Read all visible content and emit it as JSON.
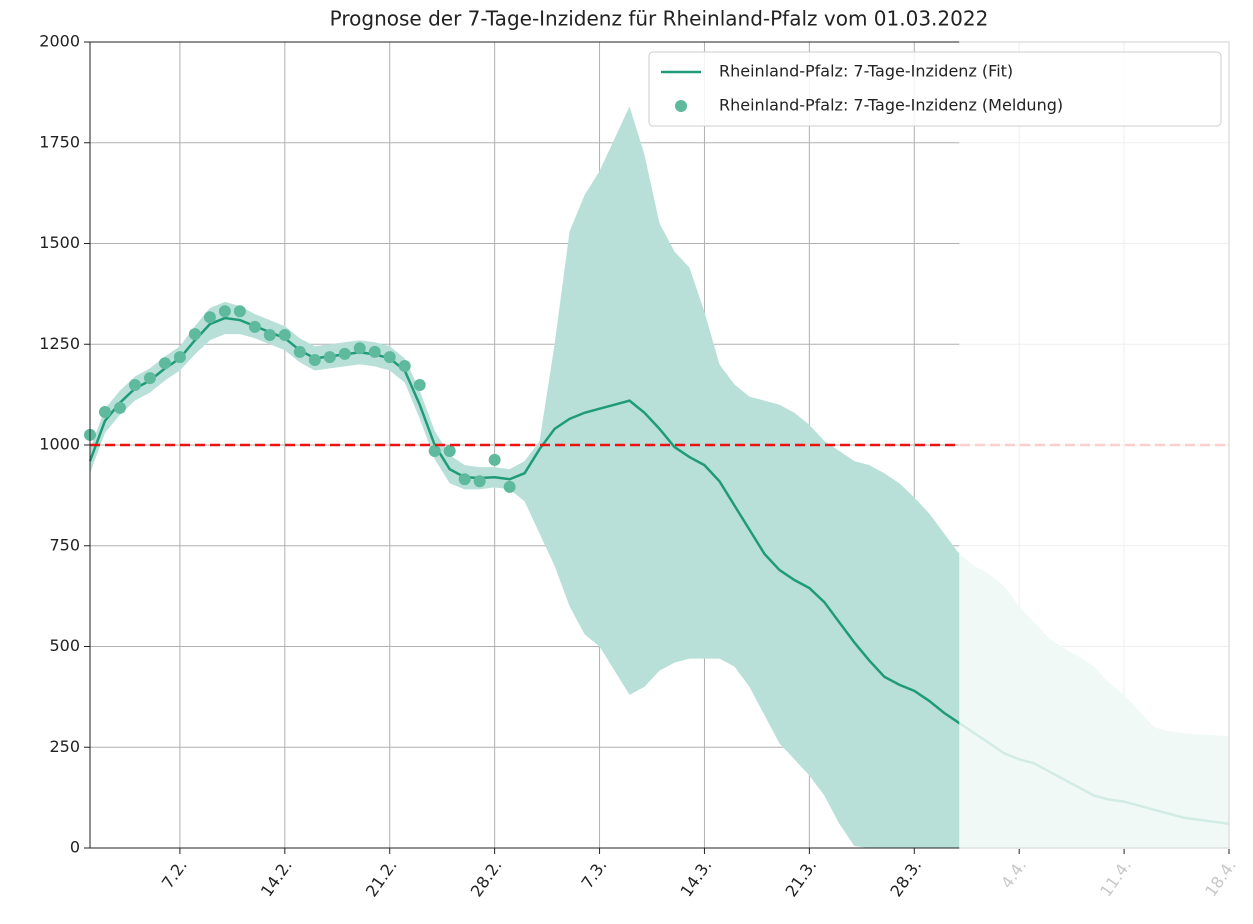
{
  "chart_data": {
    "type": "line",
    "title": "Prognose der 7-Tage-Inzidenz für Rheinland-Pfalz vom 01.03.2022",
    "xlim": [
      32,
      108
    ],
    "xticks": [
      {
        "value": 38,
        "label": "7.2."
      },
      {
        "value": 45,
        "label": "14.2."
      },
      {
        "value": 52,
        "label": "21.2."
      },
      {
        "value": 59,
        "label": "28.2."
      },
      {
        "value": 66,
        "label": "7.3."
      },
      {
        "value": 73,
        "label": "14.3."
      },
      {
        "value": 80,
        "label": "21.3."
      },
      {
        "value": 87,
        "label": "28.3."
      },
      {
        "value": 94,
        "label": "4.4."
      },
      {
        "value": 101,
        "label": "11.4."
      },
      {
        "value": 108,
        "label": "18.4."
      }
    ],
    "ylim": [
      0,
      2000
    ],
    "yticks": [
      0,
      250,
      500,
      750,
      1000,
      1250,
      1500,
      1750,
      2000
    ],
    "grid": true,
    "legend": "upper right",
    "threshold": {
      "value": 1000,
      "color": "#ee1111"
    },
    "faded_from": 90,
    "series": [
      {
        "name": "Rheinland-Pfalz: 7-Tage-Inzidenz (Fit)",
        "type": "line",
        "color": "#1f9b78",
        "band_color": "#b8e0d8",
        "x": [
          32,
          33,
          34,
          35,
          36,
          37,
          38,
          39,
          40,
          41,
          42,
          43,
          44,
          45,
          46,
          47,
          48,
          49,
          50,
          51,
          52,
          53,
          54,
          55,
          56,
          57,
          58,
          59,
          60,
          61,
          62,
          63,
          64,
          65,
          66,
          67,
          68,
          69,
          70,
          71,
          72,
          73,
          74,
          75,
          76,
          77,
          78,
          79,
          80,
          81,
          82,
          83,
          84,
          85,
          86,
          87,
          88,
          89,
          90,
          91,
          92,
          93,
          94,
          95,
          96,
          97,
          98,
          99,
          100,
          101,
          102,
          103,
          104,
          105,
          106,
          107,
          108
        ],
        "values": [
          960,
          1060,
          1105,
          1140,
          1160,
          1190,
          1215,
          1260,
          1300,
          1315,
          1310,
          1295,
          1280,
          1265,
          1235,
          1215,
          1220,
          1225,
          1230,
          1225,
          1215,
          1185,
          1100,
          1000,
          940,
          920,
          918,
          920,
          915,
          930,
          990,
          1040,
          1065,
          1080,
          1090,
          1100,
          1110,
          1080,
          1040,
          995,
          970,
          950,
          910,
          850,
          790,
          730,
          690,
          665,
          645,
          610,
          560,
          510,
          465,
          425,
          405,
          390,
          365,
          335,
          310,
          285,
          260,
          235,
          220,
          210,
          190,
          170,
          150,
          130,
          120,
          115,
          105,
          95,
          85,
          75,
          70,
          65,
          60
        ],
        "upper": [
          990,
          1090,
          1135,
          1170,
          1190,
          1220,
          1245,
          1295,
          1340,
          1355,
          1345,
          1325,
          1310,
          1295,
          1265,
          1245,
          1250,
          1255,
          1260,
          1255,
          1245,
          1215,
          1135,
          1035,
          975,
          950,
          945,
          945,
          940,
          960,
          1010,
          1250,
          1530,
          1620,
          1680,
          1760,
          1840,
          1720,
          1550,
          1480,
          1440,
          1330,
          1200,
          1150,
          1120,
          1110,
          1100,
          1080,
          1050,
          1010,
          985,
          960,
          950,
          930,
          905,
          870,
          830,
          780,
          730,
          700,
          680,
          650,
          600,
          560,
          520,
          495,
          475,
          450,
          410,
          380,
          340,
          300,
          290,
          285,
          282,
          280,
          278
        ],
        "lower": [
          930,
          1030,
          1075,
          1110,
          1130,
          1160,
          1185,
          1225,
          1260,
          1275,
          1275,
          1265,
          1250,
          1235,
          1205,
          1185,
          1190,
          1195,
          1200,
          1195,
          1185,
          1155,
          1065,
          965,
          905,
          890,
          890,
          895,
          890,
          860,
          780,
          700,
          600,
          530,
          500,
          440,
          380,
          400,
          440,
          460,
          470,
          470,
          470,
          450,
          400,
          330,
          260,
          220,
          180,
          130,
          60,
          5,
          0,
          0,
          0,
          0,
          0,
          0,
          0,
          0,
          0,
          0,
          0,
          0,
          0,
          0,
          0,
          0,
          0,
          0,
          0,
          0,
          0,
          0,
          0,
          0,
          0
        ]
      },
      {
        "name": "Rheinland-Pfalz: 7-Tage-Inzidenz (Meldung)",
        "type": "scatter",
        "color": "#5fb99c",
        "x": [
          32,
          33,
          34,
          35,
          36,
          37,
          38,
          39,
          40,
          41,
          42,
          43,
          44,
          45,
          46,
          47,
          48,
          49,
          50,
          51,
          52,
          53,
          54,
          55,
          56,
          57,
          58,
          59,
          60
        ],
        "values": [
          1025,
          1082,
          1092,
          1149,
          1166,
          1203,
          1218,
          1275,
          1317,
          1332,
          1332,
          1293,
          1273,
          1273,
          1231,
          1211,
          1218,
          1226,
          1240,
          1231,
          1218,
          1196,
          1149,
          985,
          985,
          915,
          910,
          963,
          896
        ]
      }
    ]
  }
}
